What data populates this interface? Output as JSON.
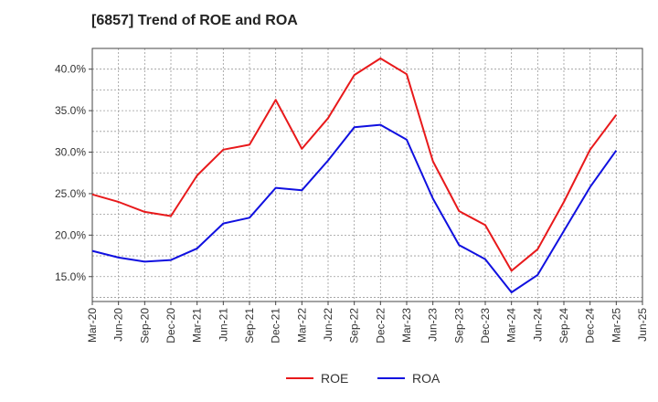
{
  "chart_data": {
    "type": "line",
    "title": "[6857]  Trend of ROE and ROA",
    "xlabel": "",
    "ylabel": "",
    "x": [
      "Mar-20",
      "Jun-20",
      "Sep-20",
      "Dec-20",
      "Mar-21",
      "Jun-21",
      "Sep-21",
      "Dec-21",
      "Mar-22",
      "Jun-22",
      "Sep-22",
      "Dec-22",
      "Mar-23",
      "Jun-23",
      "Sep-23",
      "Dec-23",
      "Mar-24",
      "Jun-24",
      "Sep-24",
      "Dec-24",
      "Mar-25",
      "Jun-25"
    ],
    "ylim": [
      12.0,
      42.5
    ],
    "yticks": [
      15,
      20,
      25,
      30,
      35,
      40
    ],
    "ytick_labels": [
      "15.0%",
      "20.0%",
      "25.0%",
      "30.0%",
      "35.0%",
      "40.0%"
    ],
    "grid": true,
    "legend": "bottom-center",
    "series": [
      {
        "name": "ROE",
        "color": "#e8191b",
        "values": [
          24.9,
          24.0,
          22.8,
          22.3,
          27.2,
          30.3,
          30.9,
          36.3,
          30.4,
          34.1,
          39.3,
          41.3,
          39.4,
          28.9,
          22.9,
          21.2,
          15.7,
          18.3,
          24.0,
          30.3,
          34.5,
          null
        ]
      },
      {
        "name": "ROA",
        "color": "#1010e0",
        "values": [
          18.1,
          17.3,
          16.8,
          17.0,
          18.4,
          21.4,
          22.1,
          25.7,
          25.4,
          29.0,
          33.0,
          33.3,
          31.5,
          24.4,
          18.8,
          17.1,
          13.1,
          15.2,
          20.5,
          25.8,
          30.2,
          null
        ]
      }
    ]
  }
}
